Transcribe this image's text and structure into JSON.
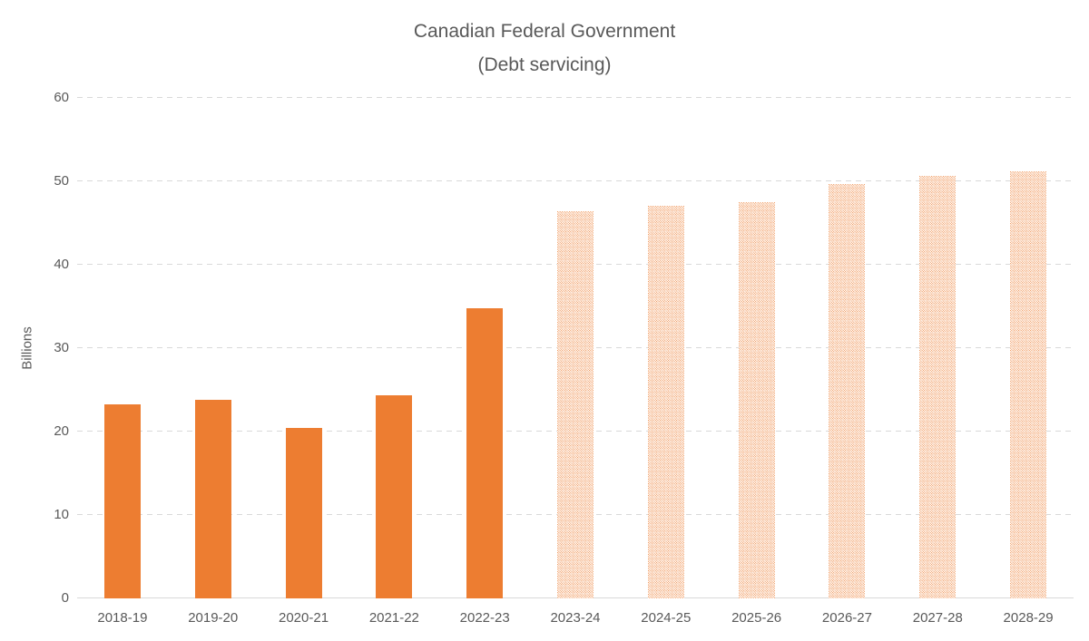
{
  "title": {
    "line1": "Canadian Federal Government",
    "line2": "(Debt servicing)"
  },
  "chart_data": {
    "type": "bar",
    "title": "Canadian Federal Government (Debt servicing)",
    "title_lines": [
      "Canadian Federal Government",
      "(Debt servicing)"
    ],
    "ylabel": "Billions",
    "xlabel": "",
    "categories": [
      "2018-19",
      "2019-20",
      "2020-21",
      "2021-22",
      "2022-23",
      "2023-24",
      "2024-25",
      "2025-26",
      "2026-27",
      "2027-28",
      "2028-29"
    ],
    "values": [
      23.3,
      23.8,
      20.4,
      24.4,
      34.8,
      46.4,
      47.1,
      47.5,
      49.7,
      50.6,
      51.2
    ],
    "fill_styles": [
      "solid",
      "solid",
      "solid",
      "solid",
      "solid",
      "dotted",
      "dotted",
      "dotted",
      "dotted",
      "dotted",
      "dotted"
    ],
    "ylim": [
      0,
      60
    ],
    "yticks": [
      0,
      10,
      20,
      30,
      40,
      50,
      60
    ],
    "grid": "horizontal-dashed",
    "legend": "none",
    "colors": {
      "bar_solid": "#ED7D31",
      "bar_dotted_dots": "#ED7D31",
      "axis_text": "#595959",
      "gridline": "#D9D9D9",
      "background": "#FFFFFF"
    }
  }
}
